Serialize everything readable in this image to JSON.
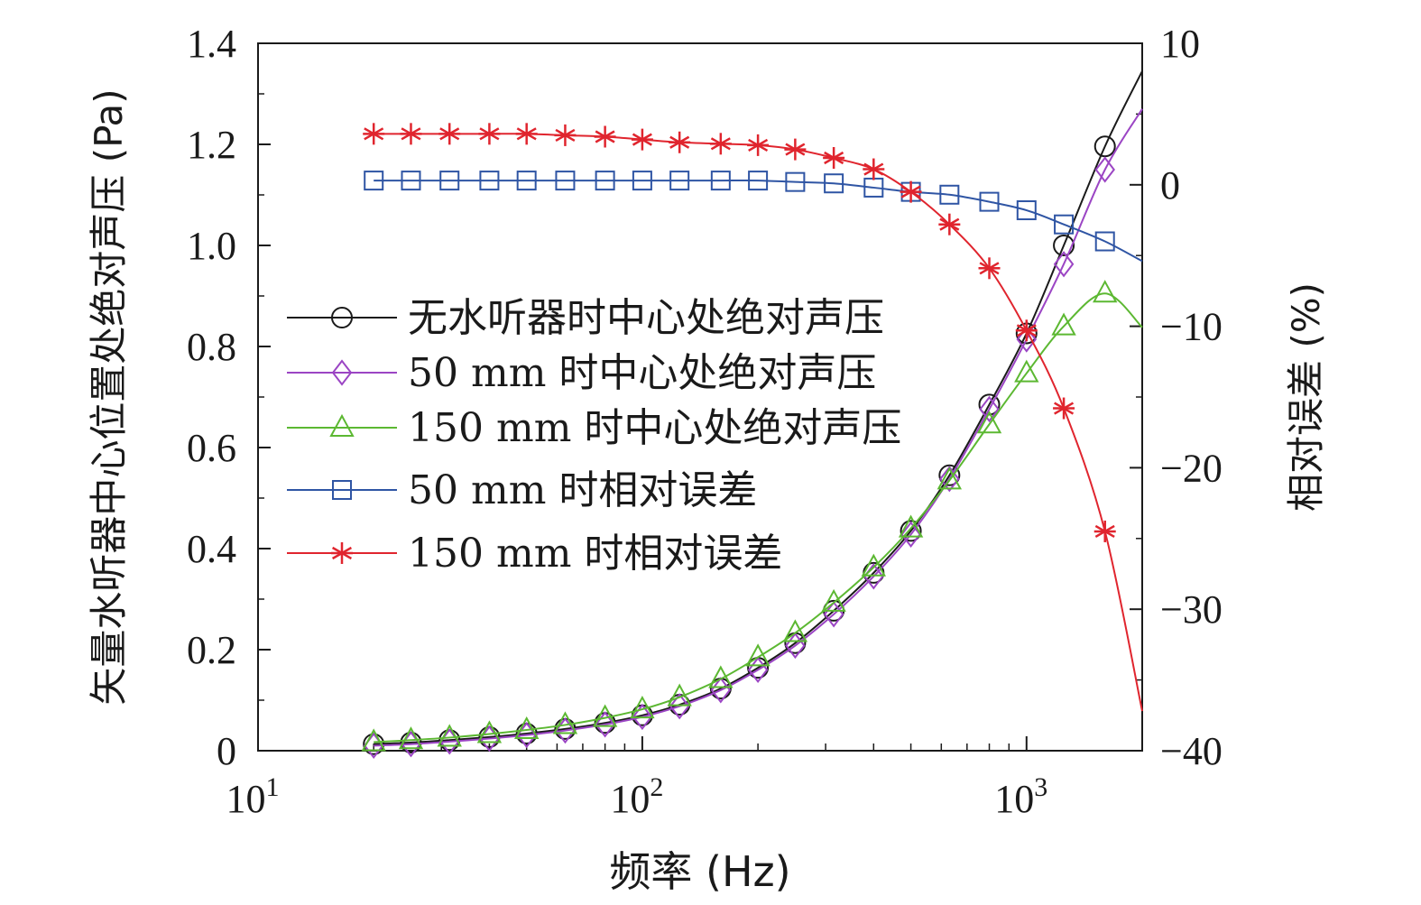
{
  "chart_data": {
    "type": "line",
    "x_scale": "log",
    "xlabel": "频率 (Hz)",
    "ylabel_left": "矢量水听器中心位置处绝对声压 (Pa)",
    "ylabel_right": "相对误差 (%)",
    "xlim": [
      10,
      2000
    ],
    "ylim_left": [
      0,
      1.4
    ],
    "ylim_right": [
      -40,
      10
    ],
    "x_ticks": [
      {
        "value": 10,
        "base": "10",
        "exp": "1"
      },
      {
        "value": 100,
        "base": "10",
        "exp": "2"
      },
      {
        "value": 1000,
        "base": "10",
        "exp": "3"
      }
    ],
    "y_left_ticks": [
      {
        "value": 0,
        "label": "0"
      },
      {
        "value": 0.2,
        "label": "0.2"
      },
      {
        "value": 0.4,
        "label": "0.4"
      },
      {
        "value": 0.6,
        "label": "0.6"
      },
      {
        "value": 0.8,
        "label": "0.8"
      },
      {
        "value": 1.0,
        "label": "1.0"
      },
      {
        "value": 1.2,
        "label": "1.2"
      },
      {
        "value": 1.4,
        "label": "1.4"
      }
    ],
    "y_right_ticks": [
      {
        "value": 10,
        "label": "10"
      },
      {
        "value": 0,
        "label": "0"
      },
      {
        "value": -10,
        "label": "−10"
      },
      {
        "value": -20,
        "label": "−20"
      },
      {
        "value": -30,
        "label": "−30"
      },
      {
        "value": -40,
        "label": "−40"
      }
    ],
    "legend_position": "left-middle",
    "series": [
      {
        "name": "无水听器时中心处绝对声压",
        "axis": "left",
        "color": "#1a1a1a",
        "marker": "circle",
        "points": [
          [
            20,
            0.013
          ],
          [
            25,
            0.016
          ],
          [
            31.5,
            0.021
          ],
          [
            40,
            0.027
          ],
          [
            50,
            0.034
          ],
          [
            63,
            0.043
          ],
          [
            80,
            0.055
          ],
          [
            100,
            0.07
          ],
          [
            125,
            0.091
          ],
          [
            160,
            0.123
          ],
          [
            200,
            0.164
          ],
          [
            250,
            0.213
          ],
          [
            315,
            0.277
          ],
          [
            400,
            0.352
          ],
          [
            500,
            0.435
          ],
          [
            630,
            0.545
          ],
          [
            800,
            0.685
          ],
          [
            1000,
            0.826
          ],
          [
            1250,
            1.0
          ],
          [
            1600,
            1.196
          ]
        ],
        "line_end": [
          2000,
          1.345
        ]
      },
      {
        "name": "50 mm 时中心处绝对声压",
        "axis": "left",
        "color": "#9b45c4",
        "marker": "diamond",
        "points": [
          [
            20,
            0.01
          ],
          [
            25,
            0.013
          ],
          [
            31.5,
            0.018
          ],
          [
            40,
            0.024
          ],
          [
            50,
            0.031
          ],
          [
            63,
            0.04
          ],
          [
            80,
            0.052
          ],
          [
            100,
            0.067
          ],
          [
            125,
            0.088
          ],
          [
            160,
            0.12
          ],
          [
            200,
            0.16
          ],
          [
            250,
            0.208
          ],
          [
            315,
            0.27
          ],
          [
            400,
            0.345
          ],
          [
            500,
            0.428
          ],
          [
            630,
            0.538
          ],
          [
            800,
            0.676
          ],
          [
            1000,
            0.814
          ],
          [
            1250,
            0.963
          ],
          [
            1600,
            1.15
          ]
        ],
        "line_end": [
          2000,
          1.27
        ]
      },
      {
        "name": "150 mm 时中心处绝对声压",
        "axis": "left",
        "color": "#5cb832",
        "marker": "triangle",
        "points": [
          [
            20,
            0.017
          ],
          [
            25,
            0.021
          ],
          [
            31.5,
            0.026
          ],
          [
            40,
            0.033
          ],
          [
            50,
            0.041
          ],
          [
            63,
            0.051
          ],
          [
            80,
            0.065
          ],
          [
            100,
            0.082
          ],
          [
            125,
            0.106
          ],
          [
            160,
            0.142
          ],
          [
            200,
            0.185
          ],
          [
            250,
            0.233
          ],
          [
            315,
            0.293
          ],
          [
            400,
            0.363
          ],
          [
            500,
            0.44
          ],
          [
            630,
            0.535
          ],
          [
            800,
            0.646
          ],
          [
            1000,
            0.747
          ],
          [
            1250,
            0.84
          ],
          [
            1600,
            0.905
          ]
        ],
        "line_end": [
          2000,
          0.838
        ]
      },
      {
        "name": "50 mm 时相对误差",
        "axis": "right",
        "color": "#2f55a4",
        "marker": "square",
        "points": [
          [
            20,
            0.3
          ],
          [
            25,
            0.3
          ],
          [
            31.5,
            0.3
          ],
          [
            40,
            0.3
          ],
          [
            50,
            0.3
          ],
          [
            63,
            0.3
          ],
          [
            80,
            0.3
          ],
          [
            100,
            0.3
          ],
          [
            125,
            0.3
          ],
          [
            160,
            0.3
          ],
          [
            200,
            0.3
          ],
          [
            250,
            0.2
          ],
          [
            315,
            0.1
          ],
          [
            400,
            -0.2
          ],
          [
            500,
            -0.5
          ],
          [
            630,
            -0.7
          ],
          [
            800,
            -1.2
          ],
          [
            1000,
            -1.8
          ],
          [
            1250,
            -2.8
          ],
          [
            1600,
            -4.0
          ]
        ],
        "line_end": [
          2000,
          -5.4
        ]
      },
      {
        "name": "150 mm 时相对误差",
        "axis": "right",
        "color": "#e0252e",
        "marker": "asterisk",
        "points": [
          [
            20,
            3.6
          ],
          [
            25,
            3.6
          ],
          [
            31.5,
            3.6
          ],
          [
            40,
            3.6
          ],
          [
            50,
            3.6
          ],
          [
            63,
            3.5
          ],
          [
            80,
            3.4
          ],
          [
            100,
            3.2
          ],
          [
            125,
            3.0
          ],
          [
            160,
            2.9
          ],
          [
            200,
            2.8
          ],
          [
            250,
            2.5
          ],
          [
            315,
            1.9
          ],
          [
            400,
            1.1
          ],
          [
            500,
            -0.5
          ],
          [
            630,
            -2.8
          ],
          [
            800,
            -5.9
          ],
          [
            1000,
            -10.3
          ],
          [
            1250,
            -15.8
          ],
          [
            1600,
            -24.5
          ]
        ],
        "line_end": [
          2000,
          -37.2
        ]
      }
    ]
  }
}
